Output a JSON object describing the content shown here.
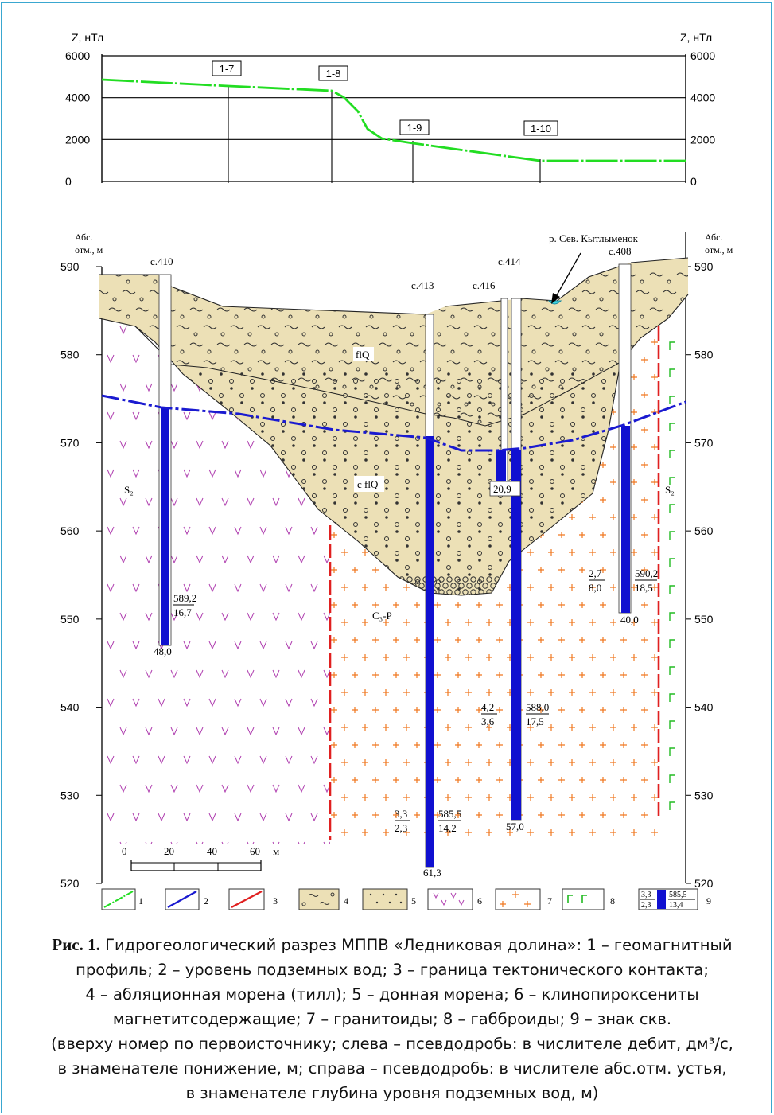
{
  "profile_chart": {
    "y_axis_label_left": "Z, нТл",
    "y_axis_label_right": "Z, нТл",
    "y_ticks": [
      "6000",
      "4000",
      "2000",
      "0"
    ],
    "y_range": [
      0,
      6000
    ],
    "points": [
      {
        "label": "1-7",
        "z": 4550
      },
      {
        "label": "1-8",
        "z": 4250
      },
      {
        "label": "1-9",
        "z": 1950
      },
      {
        "label": "1-10",
        "z": 1050
      }
    ]
  },
  "section": {
    "y_axis_label": [
      "Абс.",
      "отм., м"
    ],
    "y_ticks": [
      "590",
      "580",
      "570",
      "560",
      "550",
      "540",
      "530",
      "520"
    ],
    "y_range": [
      520,
      592
    ],
    "river_label": "р. Сев. Кытлыменок",
    "layer_labels": {
      "ablation_moraine": "flQ",
      "bottom_moraine": "c flQ",
      "silurian_left": "S₂",
      "silurian_right": "S₂",
      "granitoids": "C₃-P"
    },
    "wells": [
      {
        "id": "с.410",
        "bottom": "48,0",
        "right_num": "589,2",
        "right_den": "16,7"
      },
      {
        "id": "с.413",
        "bottom": "61,3",
        "left_num": "3,3",
        "left_den": "2,3",
        "right_num": "585,5",
        "right_den": "14,2"
      },
      {
        "id": "с.416",
        "bottom": "20,9"
      },
      {
        "id": "с.414",
        "bottom": "57,0",
        "left_num": "4,2",
        "left_den": "3,6",
        "right_num": "588,0",
        "right_den": "17,5"
      },
      {
        "id": "с.408",
        "bottom": "40,0",
        "left_num": "2,7",
        "left_den": "8,0",
        "right_num": "590,2",
        "right_den": "18,5"
      }
    ],
    "scale_bar": {
      "ticks": [
        "0",
        "20",
        "40",
        "60"
      ],
      "unit": "м"
    }
  },
  "legend": {
    "items": [
      "1",
      "2",
      "3",
      "4",
      "5",
      "6",
      "7",
      "8",
      "9"
    ],
    "sample_num_left": "3,3",
    "sample_den_left": "2,3",
    "sample_num_right": "585,5",
    "sample_den_right": "13,4"
  },
  "colors": {
    "profile_line": "#22dd22",
    "groundwater": "#1a1ad0",
    "fault": "#e02020",
    "sediment": "#ece0b6",
    "well": "#1010d0",
    "silurian_v": "#b040b0",
    "granite": "#f07820",
    "gabbro": "#22bb22",
    "frame": "#3aa7d0"
  },
  "caption": {
    "fig_label": "Рис. 1.",
    "lines": [
      "Гидрогеологический разрез МППВ «Ледниковая долина»: 1 – геомагнитный",
      "профиль; 2 – уровень подземных вод; 3 – граница тектонического контакта;",
      "4 – абляционная морена (тилл); 5 – донная морена; 6 – клинопироксениты",
      "магнетитсодержащие; 7 – гранитоиды; 8 – габброиды; 9 – знак скв.",
      "(вверху номер по первоисточнику; слева – псевдодробь: в числителе дебит, дм³/с,",
      "в знаменателе понижение, м; справа – псевдодробь: в числителе абс.отм. устья,",
      "в знаменателе глубина уровня подземных вод, м)"
    ]
  }
}
